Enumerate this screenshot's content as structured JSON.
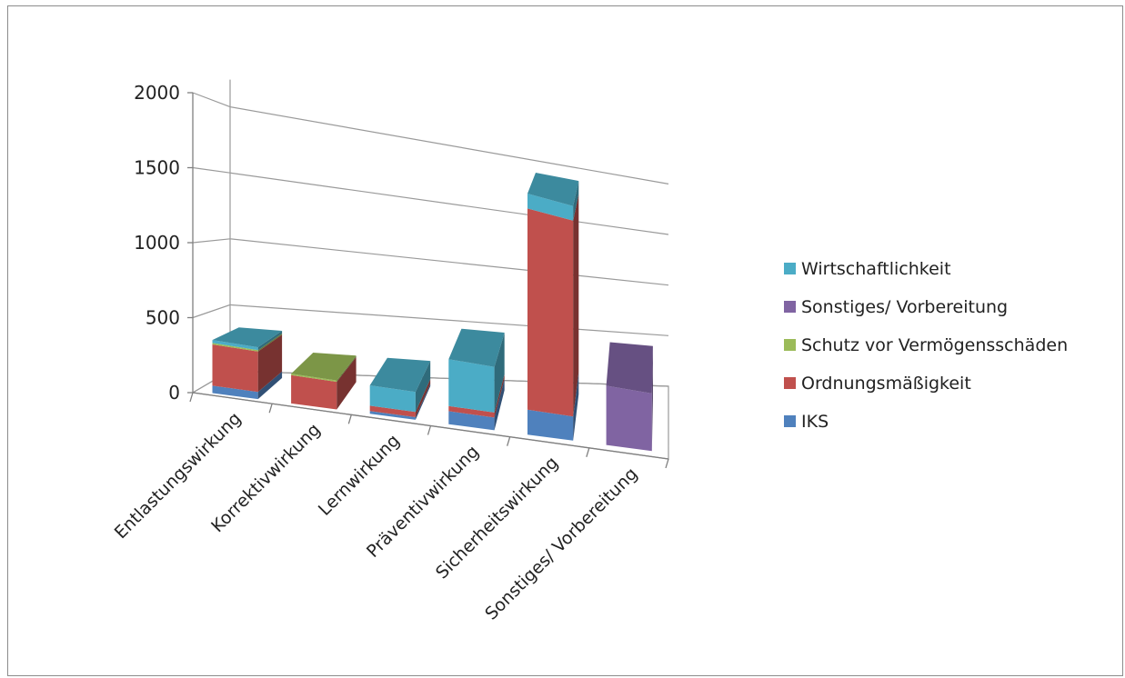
{
  "chart_data": {
    "type": "bar",
    "stacked": true,
    "three_d": true,
    "categories": [
      "Entlastungswirkung",
      "Korrektivwirkung",
      "Lernwirkung",
      "Präventivwirkung",
      "Sicherheitswirkung",
      "Sonstiges/ Vorbereitung"
    ],
    "series": [
      {
        "name": "IKS",
        "color": "#4f81bd",
        "values": [
          50,
          0,
          20,
          100,
          200,
          0
        ]
      },
      {
        "name": "Ordnungsmäßigkeit",
        "color": "#c0504d",
        "values": [
          280,
          200,
          40,
          40,
          1620,
          0
        ]
      },
      {
        "name": "Schutz vor Vermögensschäden",
        "color": "#9bbb59",
        "values": [
          10,
          10,
          0,
          0,
          0,
          0
        ]
      },
      {
        "name": "Sonstiges/ Vorbereitung",
        "color": "#8064a2",
        "values": [
          0,
          0,
          0,
          0,
          0,
          500
        ]
      },
      {
        "name": "Wirtschaftlichkeit",
        "color": "#4bacc6",
        "values": [
          20,
          0,
          150,
          360,
          120,
          0
        ]
      }
    ],
    "y_ticks": [
      "0",
      "500",
      "1000",
      "1500",
      "2000"
    ],
    "ylim": [
      0,
      2000
    ],
    "legend_order": [
      "Wirtschaftlichkeit",
      "Sonstiges/ Vorbereitung",
      "Schutz vor Vermögensschäden",
      "Ordnungsmäßigkeit",
      "IKS"
    ],
    "legend_position": "right",
    "grid": true,
    "title": "",
    "xlabel": "",
    "ylabel": ""
  }
}
